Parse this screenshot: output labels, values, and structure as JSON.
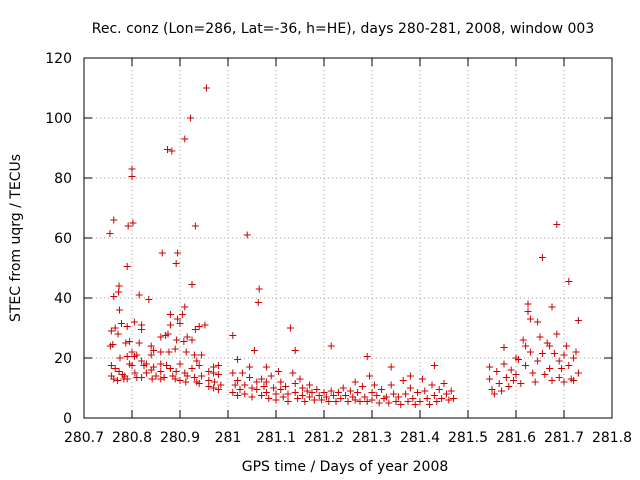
{
  "chart_data": {
    "type": "scatter",
    "title": "Rec. conz (Lon=286, Lat=-36, h=HE), days 280-281, 2008, window 003",
    "xlabel": "GPS time / Days of year 2008",
    "ylabel": "STEC from uqrg / TECUs",
    "xlim": [
      280.7,
      281.8
    ],
    "ylim": [
      0,
      120
    ],
    "xticks": [
      {
        "value": 280.7,
        "label": "280.7"
      },
      {
        "value": 280.8,
        "label": "280.8"
      },
      {
        "value": 280.9,
        "label": "280.9"
      },
      {
        "value": 281.0,
        "label": "281"
      },
      {
        "value": 281.1,
        "label": "281.1"
      },
      {
        "value": 281.2,
        "label": "281.2"
      },
      {
        "value": 281.3,
        "label": "281.3"
      },
      {
        "value": 281.4,
        "label": "281.4"
      },
      {
        "value": 281.5,
        "label": "281.5"
      },
      {
        "value": 281.6,
        "label": "281.6"
      },
      {
        "value": 281.7,
        "label": "281.7"
      },
      {
        "value": 281.8,
        "label": "281.8"
      }
    ],
    "yticks": [
      {
        "value": 0,
        "label": "0"
      },
      {
        "value": 20,
        "label": "20"
      },
      {
        "value": 40,
        "label": "40"
      },
      {
        "value": 60,
        "label": "60"
      },
      {
        "value": 80,
        "label": "80"
      },
      {
        "value": 100,
        "label": "100"
      },
      {
        "value": 120,
        "label": "120"
      }
    ],
    "grid": true,
    "marker": "plus",
    "color": "#cc0000",
    "series": [
      {
        "points": [
          [
            280.754,
            61.5
          ],
          [
            280.762,
            66
          ],
          [
            280.773,
            44
          ],
          [
            280.772,
            42
          ],
          [
            280.762,
            40.5
          ],
          [
            280.774,
            36
          ],
          [
            280.757,
            29
          ],
          [
            280.765,
            30
          ],
          [
            280.778,
            31.5
          ],
          [
            280.771,
            28
          ],
          [
            280.76,
            24.5
          ],
          [
            280.755,
            24
          ],
          [
            280.775,
            20
          ],
          [
            280.757,
            17.5
          ],
          [
            280.765,
            16.5
          ],
          [
            280.773,
            15.5
          ],
          [
            280.78,
            14.5
          ],
          [
            280.757,
            14
          ],
          [
            280.762,
            13
          ],
          [
            280.77,
            12.5
          ],
          [
            280.783,
            13
          ],
          [
            280.79,
            30.5
          ],
          [
            280.792,
            64
          ],
          [
            280.79,
            50.5
          ],
          [
            280.787,
            25
          ],
          [
            280.795,
            25.5
          ],
          [
            280.795,
            18
          ],
          [
            280.79,
            20.5
          ],
          [
            280.785,
            14
          ],
          [
            280.79,
            13
          ],
          [
            280.8,
            83
          ],
          [
            280.8,
            80.5
          ],
          [
            280.802,
            65
          ],
          [
            280.805,
            32
          ],
          [
            280.8,
            22
          ],
          [
            280.805,
            20.5
          ],
          [
            280.81,
            21
          ],
          [
            280.8,
            17.5
          ],
          [
            280.806,
            15
          ],
          [
            280.81,
            13.5
          ],
          [
            280.815,
            41
          ],
          [
            280.82,
            31
          ],
          [
            280.82,
            29.5
          ],
          [
            280.815,
            25
          ],
          [
            280.82,
            19
          ],
          [
            280.825,
            17.5
          ],
          [
            280.83,
            18
          ],
          [
            280.83,
            15
          ],
          [
            280.82,
            13.5
          ],
          [
            280.835,
            39.5
          ],
          [
            280.84,
            24
          ],
          [
            280.84,
            21
          ],
          [
            280.845,
            22.5
          ],
          [
            280.845,
            17
          ],
          [
            280.84,
            16
          ],
          [
            280.842,
            13
          ],
          [
            280.85,
            14
          ],
          [
            280.863,
            55
          ],
          [
            280.86,
            27
          ],
          [
            280.86,
            22
          ],
          [
            280.86,
            18
          ],
          [
            280.86,
            15.5
          ],
          [
            280.86,
            13
          ],
          [
            280.867,
            13.5
          ],
          [
            280.874,
            89.5
          ],
          [
            280.883,
            89
          ],
          [
            280.87,
            27.5
          ],
          [
            280.88,
            34.5
          ],
          [
            280.88,
            31
          ],
          [
            280.875,
            28
          ],
          [
            280.877,
            22
          ],
          [
            280.872,
            17.5
          ],
          [
            280.88,
            16.5
          ],
          [
            280.885,
            14
          ],
          [
            280.89,
            13
          ],
          [
            280.895,
            55
          ],
          [
            280.892,
            51.5
          ],
          [
            280.895,
            33
          ],
          [
            280.9,
            31.5
          ],
          [
            280.893,
            26
          ],
          [
            280.89,
            23
          ],
          [
            280.9,
            18
          ],
          [
            280.892,
            15.5
          ],
          [
            280.9,
            12.5
          ],
          [
            280.91,
            93
          ],
          [
            280.91,
            37
          ],
          [
            280.905,
            34.5
          ],
          [
            280.915,
            27
          ],
          [
            280.908,
            25.5
          ],
          [
            280.913,
            22
          ],
          [
            280.91,
            15
          ],
          [
            280.915,
            14
          ],
          [
            280.912,
            12
          ],
          [
            280.922,
            100
          ],
          [
            280.925,
            44.5
          ],
          [
            280.932,
            64
          ],
          [
            280.932,
            29.5
          ],
          [
            280.925,
            26
          ],
          [
            280.93,
            21
          ],
          [
            280.935,
            19
          ],
          [
            280.925,
            16.5
          ],
          [
            280.93,
            13.5
          ],
          [
            280.935,
            12
          ],
          [
            280.955,
            110
          ],
          [
            280.952,
            31
          ],
          [
            280.94,
            30.5
          ],
          [
            280.945,
            21
          ],
          [
            280.94,
            17.5
          ],
          [
            280.945,
            14
          ],
          [
            280.94,
            11.5
          ],
          [
            280.96,
            15.5
          ],
          [
            280.96,
            12.5
          ],
          [
            280.96,
            10.5
          ],
          [
            280.97,
            17
          ],
          [
            280.97,
            15
          ],
          [
            280.972,
            12
          ],
          [
            280.97,
            10
          ],
          [
            280.98,
            17.5
          ],
          [
            280.98,
            14.5
          ],
          [
            280.985,
            11
          ],
          [
            280.98,
            9.5
          ],
          [
            281.01,
            27.5
          ],
          [
            281.01,
            15
          ],
          [
            281.015,
            11
          ],
          [
            281.01,
            8.5
          ],
          [
            281.02,
            19.5
          ],
          [
            281.02,
            12.5
          ],
          [
            281.025,
            9.5
          ],
          [
            281.02,
            7.5
          ],
          [
            281.03,
            15
          ],
          [
            281.035,
            11
          ],
          [
            281.035,
            8
          ],
          [
            281.04,
            61
          ],
          [
            281.045,
            17
          ],
          [
            281.045,
            13.5
          ],
          [
            281.05,
            10
          ],
          [
            281.05,
            7
          ],
          [
            281.055,
            22.5
          ],
          [
            281.06,
            12
          ],
          [
            281.06,
            9.5
          ],
          [
            281.065,
            43
          ],
          [
            281.063,
            38.5
          ],
          [
            281.07,
            13
          ],
          [
            281.07,
            7.5
          ],
          [
            281.075,
            10.5
          ],
          [
            281.08,
            17
          ],
          [
            281.08,
            12
          ],
          [
            281.08,
            8.5
          ],
          [
            281.085,
            6.5
          ],
          [
            281.09,
            14
          ],
          [
            281.095,
            10
          ],
          [
            281.1,
            8
          ],
          [
            281.1,
            6
          ],
          [
            281.105,
            15.5
          ],
          [
            281.11,
            12
          ],
          [
            281.11,
            9.5
          ],
          [
            281.115,
            7
          ],
          [
            281.12,
            10.5
          ],
          [
            281.125,
            8
          ],
          [
            281.125,
            5.5
          ],
          [
            281.13,
            30
          ],
          [
            281.135,
            15
          ],
          [
            281.14,
            22.5
          ],
          [
            281.14,
            11.5
          ],
          [
            281.14,
            8.5
          ],
          [
            281.145,
            6.5
          ],
          [
            281.15,
            13
          ],
          [
            281.155,
            10
          ],
          [
            281.155,
            7.5
          ],
          [
            281.16,
            5.5
          ],
          [
            281.165,
            9
          ],
          [
            281.17,
            11
          ],
          [
            281.17,
            7
          ],
          [
            281.175,
            8.5
          ],
          [
            281.18,
            6
          ],
          [
            281.185,
            9.5
          ],
          [
            281.19,
            7.5
          ],
          [
            281.195,
            6
          ],
          [
            281.2,
            8.5
          ],
          [
            281.205,
            7
          ],
          [
            281.21,
            5.5
          ],
          [
            281.215,
            24
          ],
          [
            281.215,
            9
          ],
          [
            281.22,
            7.5
          ],
          [
            281.225,
            5.5
          ],
          [
            281.23,
            8.5
          ],
          [
            281.235,
            6.5
          ],
          [
            281.24,
            10
          ],
          [
            281.245,
            7.5
          ],
          [
            281.25,
            5.5
          ],
          [
            281.255,
            9
          ],
          [
            281.26,
            7
          ],
          [
            281.265,
            12
          ],
          [
            281.265,
            6
          ],
          [
            281.27,
            8.5
          ],
          [
            281.275,
            5.5
          ],
          [
            281.28,
            10.5
          ],
          [
            281.285,
            7
          ],
          [
            281.29,
            20.5
          ],
          [
            281.29,
            5.5
          ],
          [
            281.295,
            14
          ],
          [
            281.3,
            8.5
          ],
          [
            281.3,
            6
          ],
          [
            281.305,
            11
          ],
          [
            281.31,
            7.5
          ],
          [
            281.315,
            5
          ],
          [
            281.32,
            9.5
          ],
          [
            281.325,
            6.5
          ],
          [
            281.33,
            7
          ],
          [
            281.335,
            5
          ],
          [
            281.34,
            17
          ],
          [
            281.34,
            11
          ],
          [
            281.345,
            8
          ],
          [
            281.35,
            5.5
          ],
          [
            281.355,
            7
          ],
          [
            281.36,
            4.5
          ],
          [
            281.365,
            12.5
          ],
          [
            281.37,
            8
          ],
          [
            281.375,
            5.5
          ],
          [
            281.38,
            14
          ],
          [
            281.38,
            10
          ],
          [
            281.385,
            6.5
          ],
          [
            281.39,
            4.5
          ],
          [
            281.395,
            8.5
          ],
          [
            281.4,
            5.5
          ],
          [
            281.405,
            13
          ],
          [
            281.41,
            9
          ],
          [
            281.415,
            6.5
          ],
          [
            281.42,
            4.5
          ],
          [
            281.425,
            11
          ],
          [
            281.43,
            17.5
          ],
          [
            281.43,
            7.5
          ],
          [
            281.435,
            5.5
          ],
          [
            281.44,
            9.5
          ],
          [
            281.445,
            6.5
          ],
          [
            281.45,
            11.5
          ],
          [
            281.455,
            8
          ],
          [
            281.46,
            6
          ],
          [
            281.465,
            9
          ],
          [
            281.47,
            6.5
          ],
          [
            281.545,
            17
          ],
          [
            281.545,
            13
          ],
          [
            281.55,
            9.5
          ],
          [
            281.555,
            8
          ],
          [
            281.56,
            15.5
          ],
          [
            281.565,
            11.5
          ],
          [
            281.57,
            9
          ],
          [
            281.575,
            23.5
          ],
          [
            281.575,
            18
          ],
          [
            281.58,
            13.5
          ],
          [
            281.585,
            10.5
          ],
          [
            281.59,
            16
          ],
          [
            281.595,
            12.5
          ],
          [
            281.6,
            20
          ],
          [
            281.6,
            14.5
          ],
          [
            281.605,
            19.5
          ],
          [
            281.61,
            11.5
          ],
          [
            281.615,
            26
          ],
          [
            281.62,
            24
          ],
          [
            281.62,
            17.5
          ],
          [
            281.625,
            38
          ],
          [
            281.625,
            35.5
          ],
          [
            281.63,
            33
          ],
          [
            281.63,
            22
          ],
          [
            281.635,
            15
          ],
          [
            281.64,
            12
          ],
          [
            281.645,
            32
          ],
          [
            281.645,
            19
          ],
          [
            281.65,
            27
          ],
          [
            281.655,
            53.5
          ],
          [
            281.655,
            21.5
          ],
          [
            281.66,
            14.5
          ],
          [
            281.665,
            25
          ],
          [
            281.67,
            24
          ],
          [
            281.67,
            16.5
          ],
          [
            281.675,
            37
          ],
          [
            281.675,
            12.5
          ],
          [
            281.68,
            21.5
          ],
          [
            281.685,
            64.5
          ],
          [
            281.685,
            28
          ],
          [
            281.69,
            19
          ],
          [
            281.69,
            13.5
          ],
          [
            281.695,
            16.5
          ],
          [
            281.7,
            21
          ],
          [
            281.7,
            12
          ],
          [
            281.705,
            24
          ],
          [
            281.71,
            45.5
          ],
          [
            281.71,
            17.5
          ],
          [
            281.715,
            13
          ],
          [
            281.72,
            20
          ],
          [
            281.72,
            12.5
          ],
          [
            281.725,
            22
          ],
          [
            281.73,
            32.5
          ],
          [
            281.73,
            15
          ]
        ]
      }
    ]
  }
}
